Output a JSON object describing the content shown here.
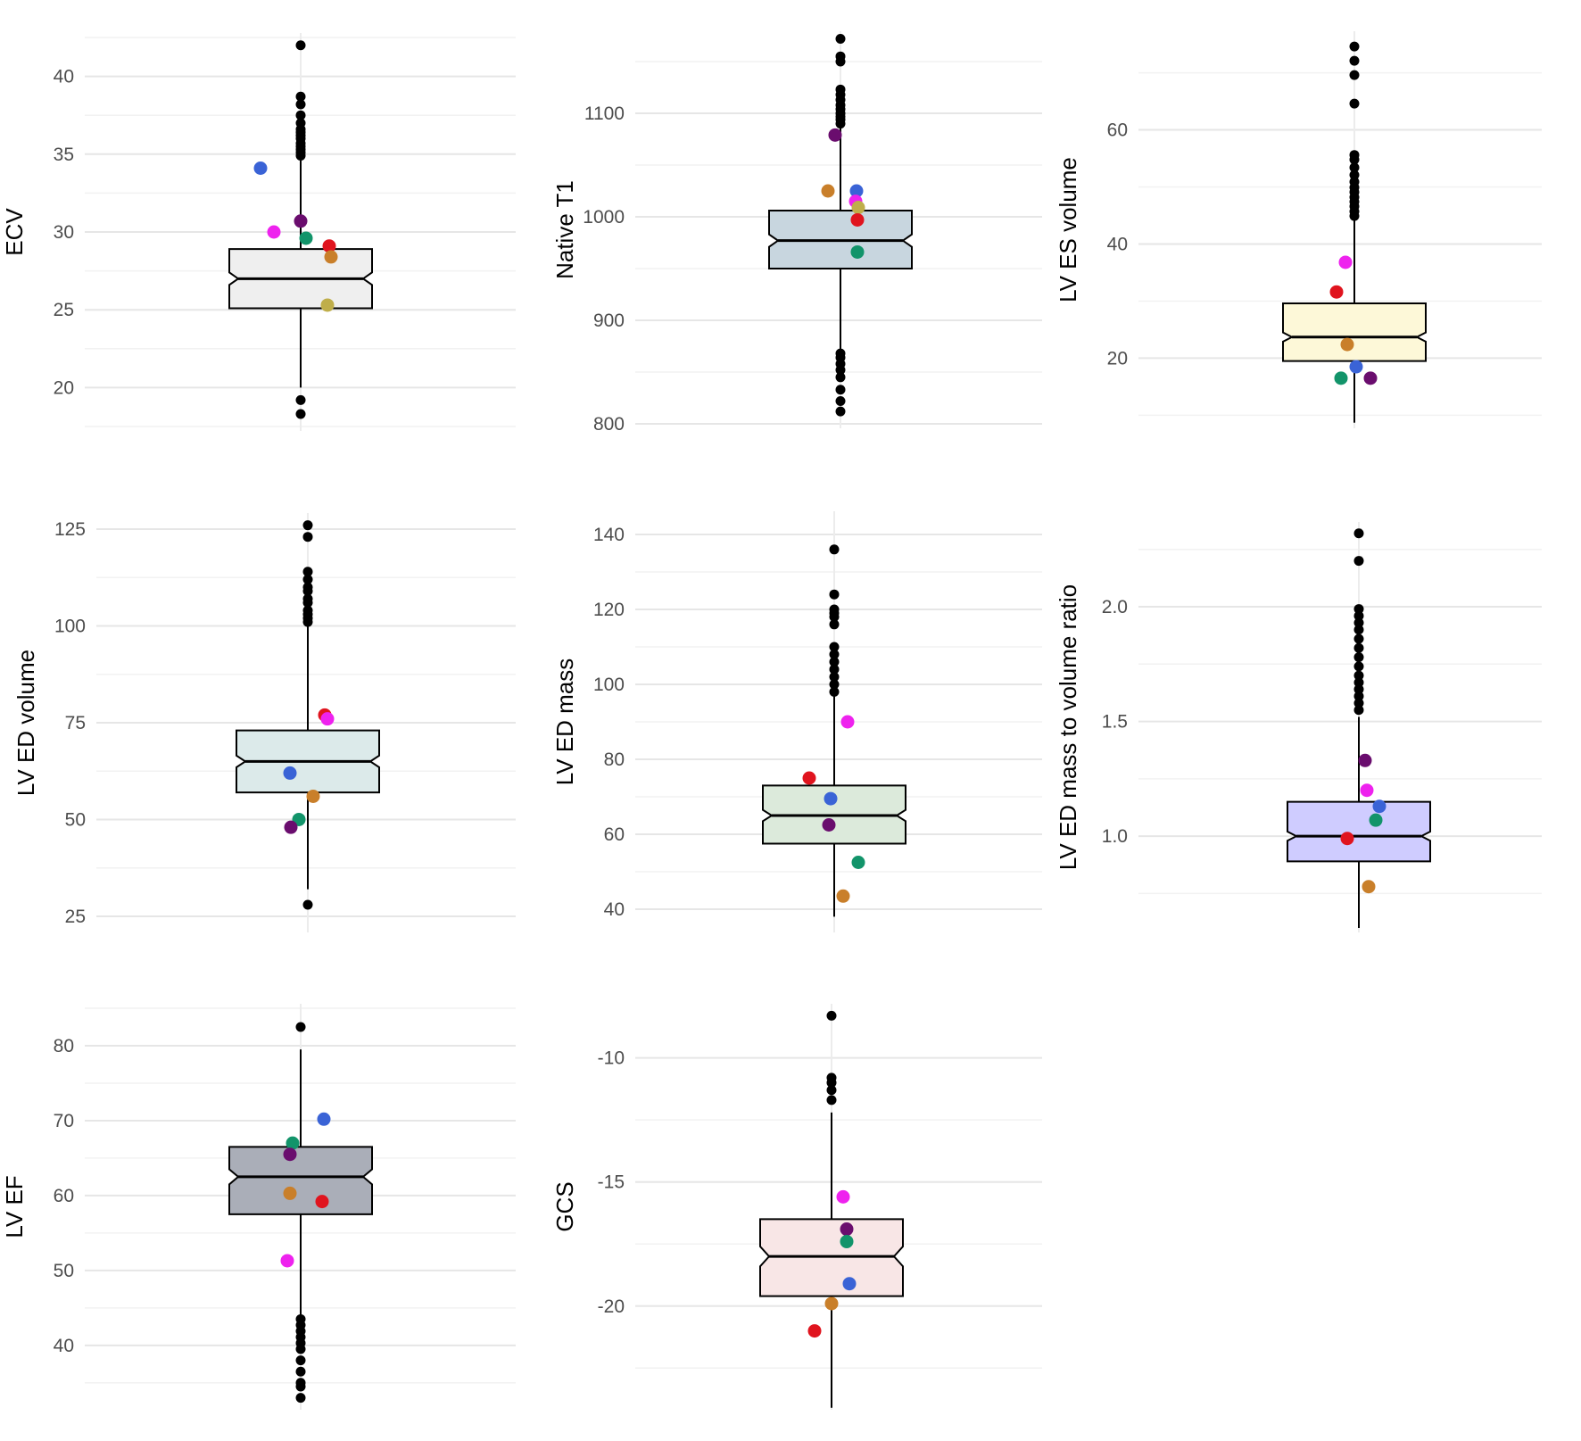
{
  "figure": {
    "layout": "3x3 grid of notched box plots with colored individual highlighted points",
    "highlight_colors": {
      "purple": "#6a0d6e",
      "blue": "#3a63d6",
      "magenta": "#ee22ee",
      "red": "#e0141e",
      "green": "#12946a",
      "orange": "#c97f2a",
      "khaki": "#bfae4a"
    }
  },
  "chart_data": [
    {
      "type": "boxplot",
      "name": "ECV",
      "ylabel": "ECV",
      "yticks": [
        20,
        25,
        30,
        35,
        40
      ],
      "ylim": [
        17.5,
        42.5
      ],
      "box": {
        "q1": 25.1,
        "median": 27.0,
        "q3": 28.9,
        "whisker_low": 20.0,
        "whisker_high": 34.6,
        "notch_low": 26.6,
        "notch_high": 27.4,
        "fill": "#efefef"
      },
      "outliers": [
        19.2,
        18.3,
        34.9,
        35.1,
        35.3,
        35.5,
        35.7,
        36.0,
        36.2,
        36.4,
        36.6,
        37.0,
        37.5,
        38.2,
        38.7,
        42.0
      ],
      "highlighted": [
        {
          "color": "blue",
          "value": 34.1,
          "offset": -0.45
        },
        {
          "color": "magenta",
          "value": 30.0,
          "offset": -0.3
        },
        {
          "color": "purple",
          "value": 30.7,
          "offset": 0.0
        },
        {
          "color": "green",
          "value": 29.6,
          "offset": 0.06
        },
        {
          "color": "red",
          "value": 29.1,
          "offset": 0.32
        },
        {
          "color": "orange",
          "value": 28.4,
          "offset": 0.34
        },
        {
          "color": "khaki",
          "value": 25.3,
          "offset": 0.3
        }
      ]
    },
    {
      "type": "boxplot",
      "name": "Native T1",
      "ylabel": "Native T1",
      "yticks": [
        800,
        900,
        1000,
        1100
      ],
      "ylim": [
        800,
        1175
      ],
      "box": {
        "q1": 950,
        "median": 977,
        "q3": 1006,
        "whisker_low": 870,
        "whisker_high": 1087,
        "notch_low": 971,
        "notch_high": 983,
        "fill": "#c8d6df"
      },
      "outliers": [
        812,
        822,
        833,
        845,
        852,
        858,
        864,
        868,
        1090,
        1094,
        1097,
        1100,
        1104,
        1108,
        1113,
        1118,
        1123,
        1150,
        1155,
        1172
      ],
      "highlighted": [
        {
          "color": "purple",
          "value": 1079,
          "offset": -0.06
        },
        {
          "color": "orange",
          "value": 1025,
          "offset": -0.14
        },
        {
          "color": "blue",
          "value": 1025,
          "offset": 0.18
        },
        {
          "color": "magenta",
          "value": 1015,
          "offset": 0.17
        },
        {
          "color": "khaki",
          "value": 1009,
          "offset": 0.2
        },
        {
          "color": "red",
          "value": 997,
          "offset": 0.19
        },
        {
          "color": "green",
          "value": 966,
          "offset": 0.19
        }
      ]
    },
    {
      "type": "boxplot",
      "name": "LV ES volume",
      "ylabel": "LV ES volume",
      "yticks": [
        20,
        40,
        60
      ],
      "ylim": [
        8.5,
        76.5
      ],
      "box": {
        "q1": 19.5,
        "median": 23.7,
        "q3": 29.6,
        "whisker_low": 8.7,
        "whisker_high": 44.5,
        "notch_low": 22.9,
        "notch_high": 24.5,
        "fill": "#fdf8d8"
      },
      "outliers": [
        44.9,
        45.7,
        46.6,
        47.4,
        48.2,
        49.1,
        49.9,
        50.9,
        52.1,
        53.4,
        54.8,
        55.6,
        64.6,
        69.6,
        72.1,
        74.6
      ],
      "highlighted": [
        {
          "color": "magenta",
          "value": 36.8,
          "offset": -0.1
        },
        {
          "color": "red",
          "value": 31.6,
          "offset": -0.2
        },
        {
          "color": "orange",
          "value": 22.4,
          "offset": -0.08
        },
        {
          "color": "blue",
          "value": 18.5,
          "offset": 0.02
        },
        {
          "color": "green",
          "value": 16.5,
          "offset": -0.15
        },
        {
          "color": "purple",
          "value": 16.5,
          "offset": 0.18
        }
      ]
    },
    {
      "type": "boxplot",
      "name": "LV ED volume",
      "ylabel": "LV ED volume",
      "yticks": [
        25,
        50,
        75,
        100,
        125
      ],
      "ylim": [
        22,
        128
      ],
      "box": {
        "q1": 57,
        "median": 65,
        "q3": 73,
        "whisker_low": 32,
        "whisker_high": 100,
        "notch_low": 63.5,
        "notch_high": 66.5,
        "fill": "#dceaea"
      },
      "outliers": [
        28,
        101,
        102,
        103,
        104,
        106,
        107,
        109,
        110,
        112,
        114,
        123,
        126
      ],
      "highlighted": [
        {
          "color": "red",
          "value": 77,
          "offset": 0.19
        },
        {
          "color": "magenta",
          "value": 76,
          "offset": 0.22
        },
        {
          "color": "blue",
          "value": 62,
          "offset": -0.2
        },
        {
          "color": "orange",
          "value": 56,
          "offset": 0.06
        },
        {
          "color": "green",
          "value": 50,
          "offset": -0.1
        },
        {
          "color": "purple",
          "value": 48,
          "offset": -0.19
        }
      ]
    },
    {
      "type": "boxplot",
      "name": "LV ED mass",
      "ylabel": "LV ED mass",
      "yticks": [
        40,
        60,
        80,
        100,
        120,
        140
      ],
      "ylim": [
        35,
        145
      ],
      "box": {
        "q1": 57.5,
        "median": 65,
        "q3": 73,
        "whisker_low": 38,
        "whisker_high": 97,
        "notch_low": 63.5,
        "notch_high": 66.5,
        "fill": "#dceadb"
      },
      "outliers": [
        98,
        100,
        102,
        104,
        106,
        108,
        110,
        116,
        118,
        119,
        120,
        124,
        136
      ],
      "highlighted": [
        {
          "color": "magenta",
          "value": 90,
          "offset": 0.15
        },
        {
          "color": "red",
          "value": 75,
          "offset": -0.28
        },
        {
          "color": "blue",
          "value": 69.5,
          "offset": -0.04
        },
        {
          "color": "purple",
          "value": 62.5,
          "offset": -0.06
        },
        {
          "color": "green",
          "value": 52.5,
          "offset": 0.27
        },
        {
          "color": "orange",
          "value": 43.5,
          "offset": 0.1
        }
      ]
    },
    {
      "type": "boxplot",
      "name": "LV ED mass to volume ratio",
      "ylabel": "LV ED mass to volume ratio",
      "yticks": [
        1.0,
        1.5,
        2.0
      ],
      "ylim": [
        0.6,
        2.35
      ],
      "box": {
        "q1": 0.89,
        "median": 1.0,
        "q3": 1.15,
        "whisker_low": 0.6,
        "whisker_high": 1.52,
        "notch_low": 0.98,
        "notch_high": 1.02,
        "fill": "#cfccff"
      },
      "outliers": [
        1.55,
        1.58,
        1.61,
        1.64,
        1.67,
        1.7,
        1.74,
        1.78,
        1.82,
        1.86,
        1.9,
        1.93,
        1.96,
        1.99,
        2.2,
        2.32
      ],
      "highlighted": [
        {
          "color": "purple",
          "value": 1.33,
          "offset": 0.07
        },
        {
          "color": "magenta",
          "value": 1.2,
          "offset": 0.09
        },
        {
          "color": "blue",
          "value": 1.13,
          "offset": 0.23
        },
        {
          "color": "green",
          "value": 1.07,
          "offset": 0.19
        },
        {
          "color": "red",
          "value": 0.99,
          "offset": -0.13
        },
        {
          "color": "orange",
          "value": 0.78,
          "offset": 0.11
        }
      ]
    },
    {
      "type": "boxplot",
      "name": "LV EF",
      "ylabel": "LV EF",
      "yticks": [
        40,
        50,
        60,
        70,
        80
      ],
      "ylim": [
        32,
        85
      ],
      "box": {
        "q1": 57.5,
        "median": 62.5,
        "q3": 66.5,
        "whisker_low": 44,
        "whisker_high": 79.5,
        "notch_low": 61.5,
        "notch_high": 63.5,
        "fill": "#aaaeb8"
      },
      "outliers": [
        82.5,
        43.5,
        42.7,
        41.9,
        41.1,
        40.3,
        39.5,
        38.0,
        36.5,
        35.0,
        34.5,
        33.0
      ],
      "highlighted": [
        {
          "color": "blue",
          "value": 70.2,
          "offset": 0.26
        },
        {
          "color": "green",
          "value": 67.0,
          "offset": -0.09
        },
        {
          "color": "purple",
          "value": 65.5,
          "offset": -0.12
        },
        {
          "color": "orange",
          "value": 60.3,
          "offset": -0.12
        },
        {
          "color": "red",
          "value": 59.2,
          "offset": 0.24
        },
        {
          "color": "magenta",
          "value": 51.3,
          "offset": -0.15
        }
      ]
    },
    {
      "type": "boxplot",
      "name": "GCS",
      "ylabel": "GCS",
      "yticks": [
        -20,
        -15,
        -10
      ],
      "ylim": [
        -24,
        -8
      ],
      "box": {
        "q1": -19.6,
        "median": -18.0,
        "q3": -16.5,
        "whisker_low": -24.1,
        "whisker_high": -12.2,
        "notch_low": -18.4,
        "notch_high": -17.6,
        "fill": "#f8e6e6"
      },
      "outliers": [
        -8.3,
        -10.8,
        -11.0,
        -11.3,
        -11.7
      ],
      "highlighted": [
        {
          "color": "magenta",
          "value": -15.6,
          "offset": 0.13
        },
        {
          "color": "purple",
          "value": -16.9,
          "offset": 0.17
        },
        {
          "color": "green",
          "value": -17.4,
          "offset": 0.17
        },
        {
          "color": "blue",
          "value": -19.1,
          "offset": 0.2
        },
        {
          "color": "orange",
          "value": -19.9,
          "offset": 0.0
        },
        {
          "color": "red",
          "value": -21.0,
          "offset": -0.19
        }
      ]
    }
  ]
}
